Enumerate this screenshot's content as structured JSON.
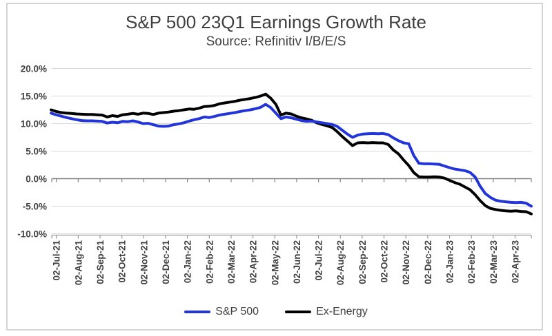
{
  "header": {
    "title": "S&P 500 23Q1 Earnings Growth Rate",
    "subtitle": "Source: Refinitiv I/B/E/S"
  },
  "colors": {
    "sp500": "#2135d8",
    "ex_energy": "#000000",
    "gridline": "#d9d9d9",
    "zero_axis": "#808080",
    "bottom_axis": "#9b9b9b",
    "tick_text": "#404040",
    "title_text": "#3f3f3f",
    "frame_border": "#d4d4d4"
  },
  "legend": {
    "items": [
      {
        "label": "S&P 500"
      },
      {
        "label": "Ex-Energy"
      }
    ]
  },
  "chart_data": {
    "type": "line",
    "title": "S&P 500 23Q1 Earnings Growth Rate",
    "subtitle": "Source: Refinitiv I/B/E/S",
    "xlabel": "",
    "ylabel": "",
    "x_start": "2021-07-02",
    "x_step_days": 7,
    "x_tick_labels": [
      "02-Jul-21",
      "02-Aug-21",
      "02-Sep-21",
      "02-Oct-21",
      "02-Nov-21",
      "02-Dec-21",
      "02-Jan-22",
      "02-Feb-22",
      "02-Mar-22",
      "02-Apr-22",
      "02-May-22",
      "02-Jun-22",
      "02-Jul-22",
      "02-Aug-22",
      "02-Sep-22",
      "02-Oct-22",
      "02-Nov-22",
      "02-Dec-22",
      "02-Jan-23",
      "02-Feb-23",
      "02-Mar-23",
      "02-Apr-23"
    ],
    "y_ticks": [
      20,
      15,
      10,
      5,
      0,
      -5,
      -10
    ],
    "y_tick_labels": [
      "20.0%",
      "15.0%",
      "10.0%",
      "5.0%",
      "0.0%",
      "-5.0%",
      "-10.0%"
    ],
    "ylim": [
      -11.5,
      20.8
    ],
    "grid": "horizontal",
    "legend_position": "bottom",
    "series": [
      {
        "name": "S&P 500",
        "color": "#2135d8",
        "values": [
          11.9,
          11.6,
          11.35,
          11.1,
          10.9,
          10.7,
          10.55,
          10.5,
          10.5,
          10.45,
          10.4,
          10.1,
          10.25,
          10.15,
          10.4,
          10.35,
          10.5,
          10.3,
          10.0,
          10.05,
          9.8,
          9.55,
          9.5,
          9.55,
          9.8,
          9.95,
          10.15,
          10.45,
          10.7,
          10.9,
          11.2,
          11.1,
          11.3,
          11.55,
          11.7,
          11.85,
          12.0,
          12.2,
          12.35,
          12.5,
          12.7,
          12.95,
          13.5,
          12.9,
          11.9,
          10.9,
          11.2,
          11.05,
          10.8,
          10.55,
          10.4,
          10.45,
          10.3,
          10.15,
          10.0,
          9.85,
          9.5,
          8.8,
          8.1,
          7.5,
          7.9,
          8.1,
          8.15,
          8.2,
          8.15,
          8.2,
          8.0,
          7.4,
          6.9,
          6.5,
          6.35,
          4.2,
          2.8,
          2.7,
          2.7,
          2.65,
          2.6,
          2.3,
          2.0,
          1.75,
          1.6,
          1.45,
          1.15,
          0.3,
          -1.4,
          -2.7,
          -3.4,
          -3.9,
          -4.1,
          -4.2,
          -4.3,
          -4.35,
          -4.3,
          -4.45,
          -5.0
        ]
      },
      {
        "name": "Ex-Energy",
        "color": "#000000",
        "values": [
          12.5,
          12.2,
          12.0,
          11.9,
          11.85,
          11.75,
          11.7,
          11.65,
          11.65,
          11.6,
          11.55,
          11.2,
          11.45,
          11.3,
          11.6,
          11.7,
          11.85,
          11.7,
          11.9,
          11.85,
          11.65,
          11.9,
          12.0,
          12.1,
          12.25,
          12.35,
          12.5,
          12.65,
          12.6,
          12.8,
          13.1,
          13.15,
          13.3,
          13.6,
          13.75,
          13.9,
          14.05,
          14.25,
          14.4,
          14.55,
          14.75,
          15.0,
          15.35,
          14.6,
          13.5,
          11.55,
          11.9,
          11.75,
          11.35,
          11.05,
          10.85,
          10.6,
          10.15,
          9.85,
          9.6,
          9.3,
          8.55,
          7.65,
          6.85,
          6.0,
          6.5,
          6.55,
          6.5,
          6.55,
          6.5,
          6.5,
          6.2,
          5.2,
          4.5,
          3.4,
          2.4,
          1.1,
          0.35,
          0.3,
          0.3,
          0.35,
          0.3,
          0.1,
          -0.3,
          -0.7,
          -1.0,
          -1.5,
          -2.0,
          -2.9,
          -4.0,
          -4.9,
          -5.4,
          -5.6,
          -5.75,
          -5.85,
          -5.9,
          -5.85,
          -5.95,
          -6.0,
          -6.4
        ]
      }
    ]
  }
}
